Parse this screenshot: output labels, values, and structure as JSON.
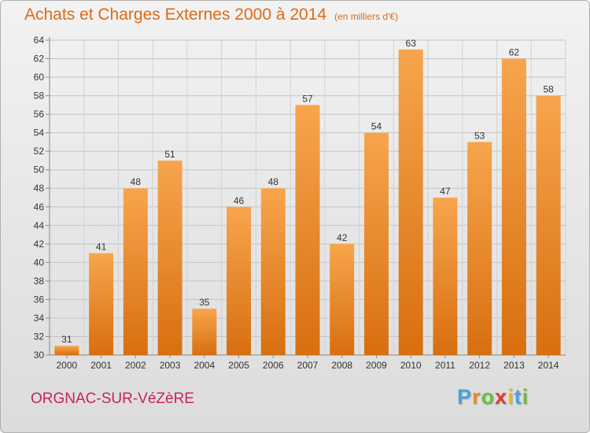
{
  "header": {
    "title": "Achats et Charges Externes 2000 à 2014",
    "unit": "(en milliers d'€)"
  },
  "footer": {
    "commune": "ORGNAC-SUR-VéZèRE",
    "brand": "Proxiti"
  },
  "colors": {
    "bar_light": "#f7a54d",
    "bar_dark": "#d86f10",
    "title": "#e06a14",
    "commune": "#cc2257",
    "brand_letters": [
      "#4aa3df",
      "#f08a1d",
      "#6cbf3c",
      "#e53935",
      "#f0b81d",
      "#4aa3df",
      "#6cbf3c"
    ]
  },
  "chart_data": {
    "type": "bar",
    "categories": [
      "2000",
      "2001",
      "2002",
      "2003",
      "2004",
      "2005",
      "2006",
      "2007",
      "2008",
      "2009",
      "2010",
      "2011",
      "2012",
      "2013",
      "2014"
    ],
    "values": [
      31,
      41,
      48,
      51,
      35,
      46,
      48,
      57,
      42,
      54,
      63,
      47,
      53,
      62,
      58
    ],
    "y_ticks": [
      30,
      32,
      34,
      36,
      38,
      40,
      42,
      44,
      46,
      48,
      50,
      52,
      54,
      56,
      58,
      60,
      62,
      64
    ],
    "ylim": [
      30,
      64
    ],
    "grid": true,
    "legend": "none"
  }
}
